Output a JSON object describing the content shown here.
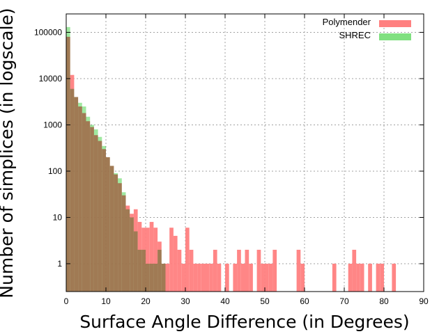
{
  "chart_data": {
    "type": "bar",
    "title": "",
    "xlabel": "Surface Angle Difference (in Degrees)",
    "ylabel": "Number of simplices (in logscale)",
    "xlim": [
      0,
      90
    ],
    "ylim": [
      0.25,
      250000
    ],
    "yscale": "log",
    "bin_width": 1,
    "grid": true,
    "legend_position": "top-right",
    "x_ticks": [
      "0",
      "10",
      "20",
      "30",
      "40",
      "50",
      "60",
      "70",
      "80",
      "90"
    ],
    "y_ticks": [
      {
        "value": 1,
        "label": "1"
      },
      {
        "value": 10,
        "label": "10"
      },
      {
        "value": 100,
        "label": "100"
      },
      {
        "value": 1000,
        "label": "1000"
      },
      {
        "value": 10000,
        "label": "10000"
      },
      {
        "value": 100000,
        "label": "100000"
      }
    ],
    "series": [
      {
        "name": "Polymender",
        "color": "#ff8080",
        "points": [
          [
            0,
            80000
          ],
          [
            1,
            12000
          ],
          [
            2,
            4000
          ],
          [
            3,
            2500
          ],
          [
            4,
            1800
          ],
          [
            5,
            1200
          ],
          [
            6,
            900
          ],
          [
            7,
            600
          ],
          [
            8,
            450
          ],
          [
            9,
            300
          ],
          [
            10,
            200
          ],
          [
            11,
            130
          ],
          [
            12,
            85
          ],
          [
            13,
            55
          ],
          [
            14,
            30
          ],
          [
            15,
            18
          ],
          [
            16,
            12
          ],
          [
            17,
            15
          ],
          [
            18,
            8
          ],
          [
            19,
            6
          ],
          [
            20,
            6
          ],
          [
            21,
            8
          ],
          [
            22,
            6
          ],
          [
            23,
            3
          ],
          [
            24,
            1
          ],
          [
            25,
            1
          ],
          [
            26,
            6
          ],
          [
            27,
            4
          ],
          [
            28,
            2
          ],
          [
            29,
            1
          ],
          [
            30,
            6
          ],
          [
            31,
            2
          ],
          [
            32,
            1
          ],
          [
            33,
            1
          ],
          [
            34,
            1
          ],
          [
            35,
            1
          ],
          [
            36,
            1
          ],
          [
            37,
            2
          ],
          [
            38,
            1
          ],
          [
            40,
            1
          ],
          [
            42,
            1
          ],
          [
            43,
            2
          ],
          [
            44,
            1
          ],
          [
            45,
            2
          ],
          [
            46,
            1
          ],
          [
            48,
            2
          ],
          [
            49,
            1
          ],
          [
            50,
            1
          ],
          [
            51,
            1
          ],
          [
            52,
            2
          ],
          [
            58,
            2
          ],
          [
            59,
            1
          ],
          [
            67,
            1
          ],
          [
            71,
            1
          ],
          [
            72,
            2
          ],
          [
            73,
            1
          ],
          [
            74,
            1
          ],
          [
            76,
            1
          ],
          [
            78,
            1
          ],
          [
            79,
            1
          ],
          [
            82,
            1
          ]
        ]
      },
      {
        "name": "SHREC",
        "color": "#80e080",
        "points": [
          [
            0,
            130000
          ],
          [
            1,
            6000
          ],
          [
            2,
            4000
          ],
          [
            3,
            3000
          ],
          [
            4,
            2500
          ],
          [
            5,
            1500
          ],
          [
            6,
            1000
          ],
          [
            7,
            800
          ],
          [
            8,
            550
          ],
          [
            9,
            350
          ],
          [
            10,
            200
          ],
          [
            11,
            130
          ],
          [
            12,
            90
          ],
          [
            13,
            70
          ],
          [
            14,
            35
          ],
          [
            15,
            15
          ],
          [
            16,
            10
          ],
          [
            17,
            5
          ],
          [
            18,
            2
          ],
          [
            19,
            2
          ],
          [
            20,
            1
          ],
          [
            21,
            1
          ],
          [
            22,
            1
          ],
          [
            23,
            2
          ],
          [
            24,
            1
          ]
        ]
      }
    ]
  }
}
